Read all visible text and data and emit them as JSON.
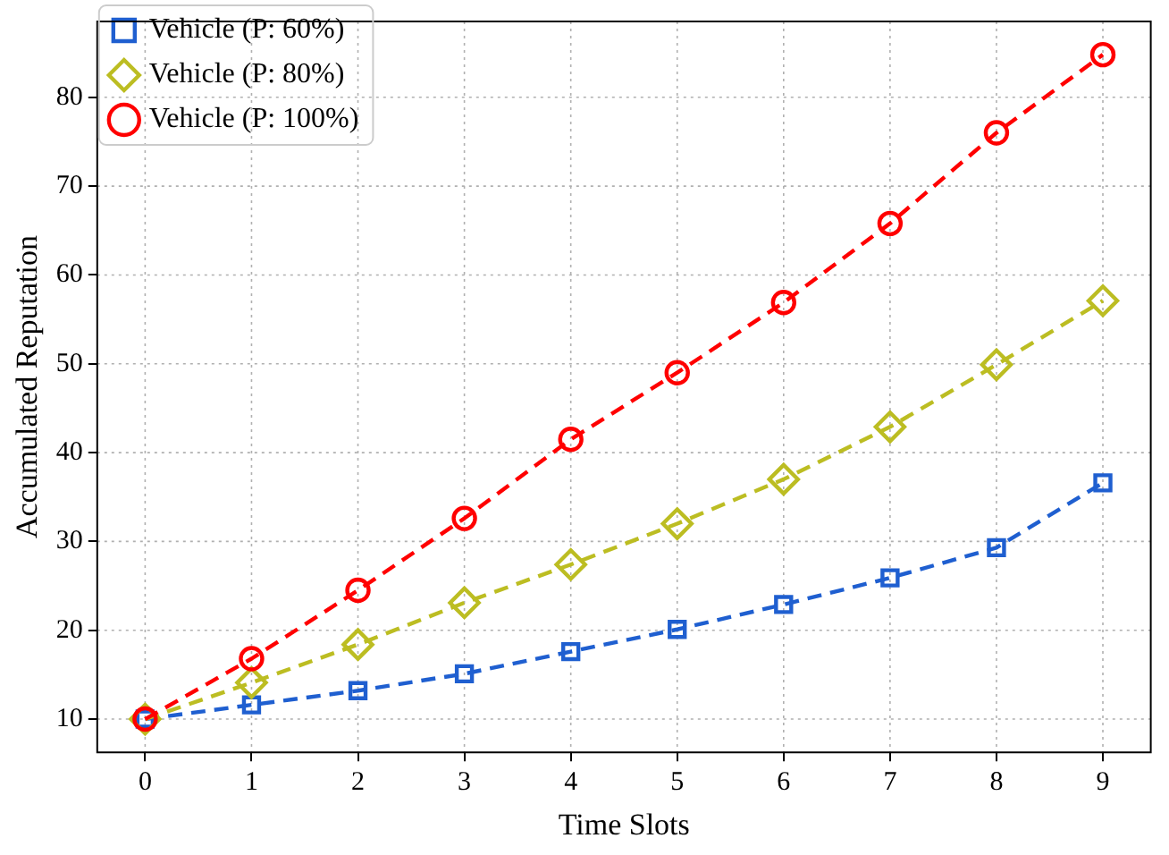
{
  "chart_data": {
    "type": "line",
    "xlabel": "Time Slots",
    "ylabel": "Accumulated Reputation",
    "x": [
      0,
      1,
      2,
      3,
      4,
      5,
      6,
      7,
      8,
      9
    ],
    "series": [
      {
        "name": "Vehicle (P: 60%)",
        "color": "#1f5fd0",
        "marker": "square",
        "values": [
          10,
          11.6,
          13.2,
          15.1,
          17.6,
          20.1,
          22.9,
          25.9,
          29.3,
          36.6
        ]
      },
      {
        "name": "Vehicle (P: 80%)",
        "color": "#bcbd22",
        "marker": "diamond",
        "values": [
          10,
          14.1,
          18.4,
          23.1,
          27.4,
          32.0,
          37.0,
          42.9,
          49.9,
          57.1
        ]
      },
      {
        "name": "Vehicle (P: 100%)",
        "color": "#ff0000",
        "marker": "circle",
        "values": [
          10,
          16.8,
          24.5,
          32.6,
          41.5,
          49.0,
          56.9,
          65.8,
          76.0,
          84.8
        ]
      }
    ],
    "xlim": [
      -0.45,
      9.45
    ],
    "xticks": [
      0,
      1,
      2,
      3,
      4,
      5,
      6,
      7,
      8,
      9
    ],
    "ylim": [
      6.26,
      88.54
    ],
    "yticks": [
      10,
      20,
      30,
      40,
      50,
      60,
      70,
      80
    ],
    "grid": true,
    "legend": "top left",
    "line_style": "dashed"
  }
}
